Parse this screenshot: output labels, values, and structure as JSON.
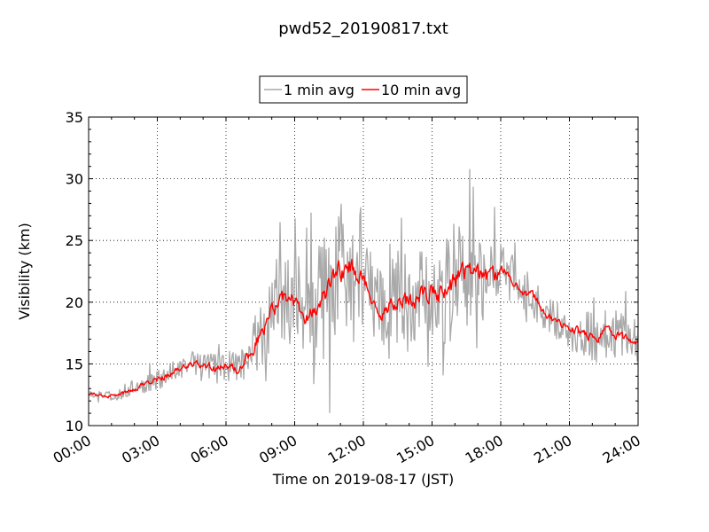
{
  "chart_data": {
    "type": "line",
    "title": "pwd52_20190817.txt",
    "xlabel": "Time on 2019-08-17 (JST)",
    "ylabel": "Visibility (km)",
    "xlim": [
      "00:00",
      "24:00"
    ],
    "ylim": [
      10,
      35
    ],
    "x_ticks": [
      "00:00",
      "03:00",
      "06:00",
      "09:00",
      "12:00",
      "15:00",
      "18:00",
      "21:00",
      "24:00"
    ],
    "y_ticks": [
      "10",
      "15",
      "20",
      "25",
      "30",
      "35"
    ],
    "grid": true,
    "legend_position": "top-center",
    "series": [
      {
        "name": "1 min avg",
        "color": "#a9a9a9",
        "x": [
          "00:00",
          "00:30",
          "01:00",
          "01:30",
          "02:00",
          "02:30",
          "03:00",
          "03:30",
          "04:00",
          "04:30",
          "05:00",
          "05:30",
          "06:00",
          "06:30",
          "07:00",
          "07:30",
          "08:00",
          "08:30",
          "09:00",
          "09:30",
          "10:00",
          "10:30",
          "11:00",
          "11:30",
          "12:00",
          "12:30",
          "13:00",
          "13:30",
          "14:00",
          "14:30",
          "15:00",
          "15:30",
          "16:00",
          "16:30",
          "17:00",
          "17:30",
          "18:00",
          "18:30",
          "19:00",
          "19:30",
          "20:00",
          "20:30",
          "21:00",
          "21:30",
          "22:00",
          "22:30",
          "23:00",
          "23:30",
          "24:00"
        ],
        "y": [
          12.6,
          12.5,
          12.4,
          12.6,
          13.0,
          13.4,
          13.7,
          14.1,
          14.6,
          15.1,
          15.0,
          14.6,
          14.8,
          14.6,
          15.8,
          17.2,
          19.5,
          20.2,
          20.0,
          18.4,
          19.8,
          21.0,
          22.5,
          23.0,
          21.5,
          19.8,
          19.5,
          20.0,
          19.8,
          20.5,
          21.0,
          20.5,
          21.8,
          22.5,
          22.2,
          21.8,
          22.5,
          22.0,
          21.0,
          20.2,
          19.0,
          18.4,
          18.0,
          17.5,
          17.0,
          17.8,
          17.4,
          17.0,
          16.8
        ],
        "noise": [
          0.3,
          0.3,
          0.4,
          0.5,
          0.6,
          0.7,
          0.8,
          0.9,
          0.9,
          1.0,
          1.1,
          1.2,
          1.3,
          1.6,
          2.1,
          2.8,
          3.4,
          3.6,
          3.4,
          3.6,
          4.6,
          5.6,
          5.6,
          4.8,
          3.6,
          3.8,
          4.4,
          4.6,
          4.2,
          3.8,
          3.6,
          4.2,
          4.6,
          4.4,
          4.0,
          3.0,
          2.4,
          2.0,
          1.8,
          1.8,
          1.6,
          1.5,
          1.8,
          2.0,
          2.2,
          2.4,
          2.0,
          2.0,
          1.8
        ]
      },
      {
        "name": "10 min avg",
        "color": "#ff0000",
        "x": [
          "00:00",
          "00:30",
          "01:00",
          "01:30",
          "02:00",
          "02:30",
          "03:00",
          "03:30",
          "04:00",
          "04:30",
          "05:00",
          "05:30",
          "06:00",
          "06:30",
          "07:00",
          "07:30",
          "08:00",
          "08:30",
          "09:00",
          "09:30",
          "10:00",
          "10:30",
          "11:00",
          "11:30",
          "12:00",
          "12:30",
          "13:00",
          "13:30",
          "14:00",
          "14:30",
          "15:00",
          "15:30",
          "16:00",
          "16:30",
          "17:00",
          "17:30",
          "18:00",
          "18:30",
          "19:00",
          "19:30",
          "20:00",
          "20:30",
          "21:00",
          "21:30",
          "22:00",
          "22:30",
          "23:00",
          "23:30",
          "24:00"
        ],
        "y": [
          12.6,
          12.5,
          12.4,
          12.6,
          13.0,
          13.4,
          13.7,
          14.1,
          14.6,
          15.1,
          15.0,
          14.6,
          14.8,
          14.6,
          15.8,
          17.2,
          19.5,
          20.2,
          20.0,
          18.4,
          19.8,
          21.0,
          22.5,
          23.0,
          21.5,
          19.8,
          19.5,
          20.0,
          19.8,
          20.5,
          21.0,
          20.5,
          21.8,
          22.5,
          22.2,
          21.8,
          22.5,
          22.0,
          21.0,
          20.2,
          19.0,
          18.4,
          18.0,
          17.5,
          17.0,
          17.8,
          17.4,
          17.0,
          16.8
        ],
        "noise": [
          0.15,
          0.15,
          0.2,
          0.2,
          0.25,
          0.25,
          0.3,
          0.3,
          0.35,
          0.35,
          0.35,
          0.4,
          0.45,
          0.5,
          0.6,
          0.7,
          0.8,
          0.9,
          0.9,
          0.9,
          1.0,
          1.1,
          1.1,
          1.0,
          0.9,
          0.9,
          0.9,
          1.0,
          1.0,
          0.9,
          0.9,
          1.0,
          1.1,
          1.0,
          0.9,
          0.8,
          0.6,
          0.5,
          0.5,
          0.5,
          0.45,
          0.4,
          0.45,
          0.45,
          0.5,
          0.55,
          0.5,
          0.45,
          0.4
        ]
      }
    ]
  }
}
